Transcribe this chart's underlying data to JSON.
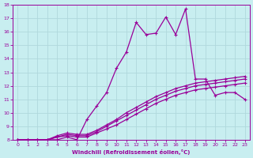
{
  "xlabel": "Windchill (Refroidissement éolien,°C)",
  "bg_color": "#c8eef0",
  "line_color": "#990099",
  "grid_color": "#b0d8dc",
  "xlim": [
    -0.5,
    23.5
  ],
  "ylim": [
    8,
    18
  ],
  "xticks": [
    0,
    1,
    2,
    3,
    4,
    5,
    6,
    7,
    8,
    9,
    10,
    11,
    12,
    13,
    14,
    15,
    16,
    17,
    18,
    19,
    20,
    21,
    22,
    23
  ],
  "yticks": [
    8,
    9,
    10,
    11,
    12,
    13,
    14,
    15,
    16,
    17,
    18
  ],
  "curve_main_x": [
    0,
    1,
    2,
    3,
    4,
    5,
    6,
    7,
    8,
    9,
    10,
    11,
    12,
    13,
    14,
    15,
    16,
    17,
    18,
    19,
    20,
    21,
    22,
    23
  ],
  "curve_main_y": [
    8.0,
    8.0,
    8.0,
    8.0,
    8.0,
    8.2,
    8.0,
    9.5,
    10.5,
    11.5,
    13.3,
    14.5,
    16.7,
    15.8,
    15.9,
    17.1,
    15.8,
    17.7,
    12.5,
    12.5,
    11.3,
    11.5,
    11.5,
    11.0
  ],
  "curve_low1_x": [
    0,
    1,
    2,
    3,
    4,
    5,
    6,
    7,
    8,
    9,
    10,
    11,
    12,
    13,
    14,
    15,
    16,
    17,
    18,
    19,
    20,
    21,
    22,
    23
  ],
  "curve_low1_y": [
    8.0,
    8.0,
    8.0,
    8.0,
    8.2,
    8.3,
    8.2,
    8.2,
    8.5,
    8.8,
    9.1,
    9.5,
    9.9,
    10.3,
    10.7,
    11.0,
    11.3,
    11.5,
    11.7,
    11.8,
    11.9,
    12.0,
    12.1,
    12.2
  ],
  "curve_low2_x": [
    0,
    1,
    2,
    3,
    4,
    5,
    6,
    7,
    8,
    9,
    10,
    11,
    12,
    13,
    14,
    15,
    16,
    17,
    18,
    19,
    20,
    21,
    22,
    23
  ],
  "curve_low2_y": [
    8.0,
    8.0,
    8.0,
    8.0,
    8.2,
    8.4,
    8.3,
    8.3,
    8.6,
    9.0,
    9.4,
    9.8,
    10.2,
    10.6,
    11.0,
    11.3,
    11.6,
    11.8,
    12.0,
    12.1,
    12.2,
    12.3,
    12.4,
    12.5
  ],
  "curve_low3_x": [
    0,
    1,
    2,
    3,
    4,
    5,
    6,
    7,
    8,
    9,
    10,
    11,
    12,
    13,
    14,
    15,
    16,
    17,
    18,
    19,
    20,
    21,
    22,
    23
  ],
  "curve_low3_y": [
    8.0,
    8.0,
    8.0,
    8.0,
    8.3,
    8.5,
    8.4,
    8.4,
    8.7,
    9.1,
    9.5,
    10.0,
    10.4,
    10.8,
    11.2,
    11.5,
    11.8,
    12.0,
    12.2,
    12.3,
    12.4,
    12.5,
    12.6,
    12.7
  ],
  "marker": "+",
  "markersize": 3,
  "linewidth": 0.9
}
